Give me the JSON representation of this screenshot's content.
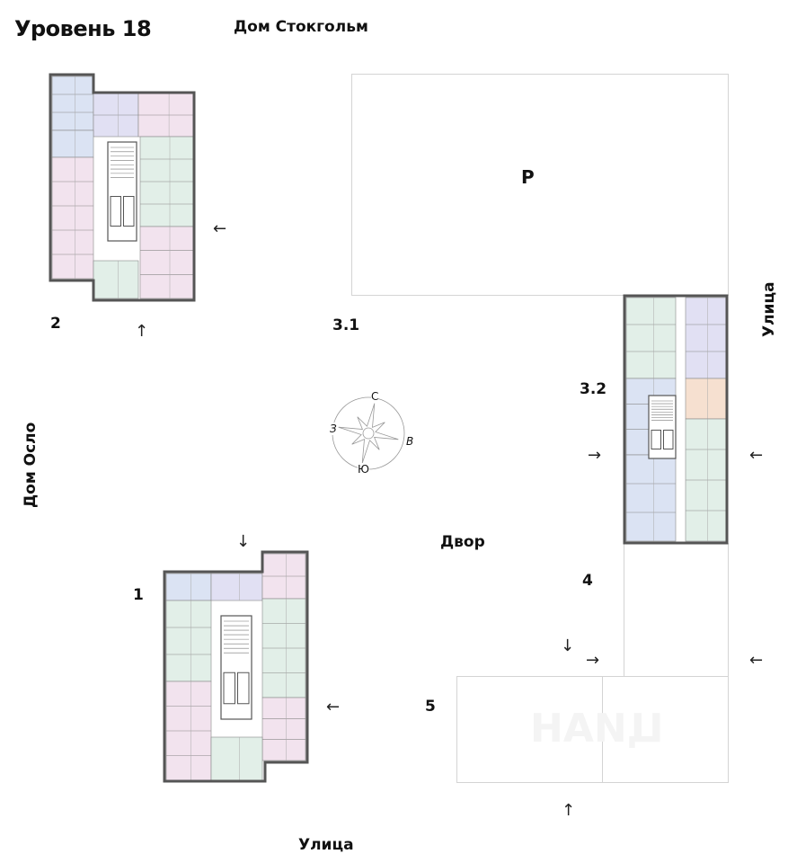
{
  "level_title": "Уровень 18",
  "neighbors": {
    "stockholm": "Дом Стокгольм",
    "oslo": "Дом Осло",
    "street_right": "Улица",
    "street_bottom": "Улица",
    "yard": "Двор"
  },
  "parking_label": "P",
  "sections": [
    "1",
    "2",
    "3.1",
    "3.2",
    "4",
    "5"
  ],
  "compass": {
    "north": "С",
    "south": "Ю",
    "west": "З",
    "east": "В"
  },
  "watermark": "ЦИАН",
  "colors": {
    "green": "#e2efe8",
    "blue": "#dbe3f3",
    "lavender": "#e1e0f3",
    "pink": "#f2e3ee",
    "peach": "#f6e0d0",
    "wall": "#555555",
    "outline": "#d4d4d4"
  },
  "icons": {
    "entrance_arrow": "arrow-icon",
    "compass": "compass-rose-icon"
  }
}
